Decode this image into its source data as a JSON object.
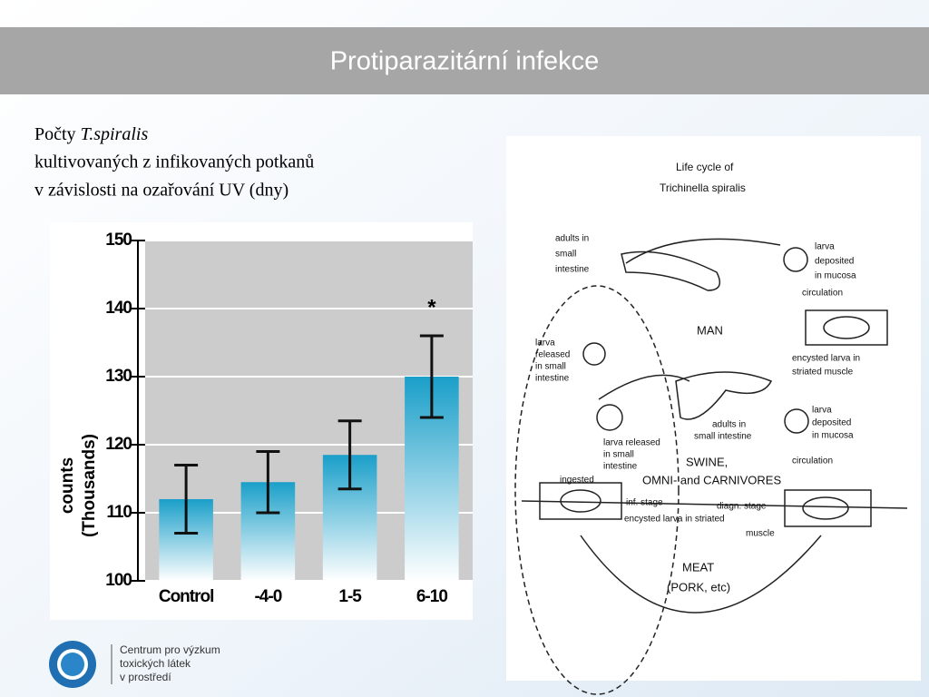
{
  "header": {
    "title": "Protiparazitární infekce"
  },
  "caption": {
    "prefix": "Počty",
    "species": "T.spiralis",
    "line2": "kultivovaných z infikovaných potkanů",
    "line3": "v závislosti na ozařování UV (dny)"
  },
  "chart_data": {
    "type": "bar",
    "categories": [
      "Control",
      "-4-0",
      "1-5",
      "6-10"
    ],
    "values": [
      112,
      114.5,
      118.5,
      130
    ],
    "errors": [
      5,
      4.5,
      5,
      6
    ],
    "color": "#1a9fc9",
    "ylim": [
      100,
      150
    ],
    "yticks": [
      100,
      110,
      120,
      130,
      140,
      150
    ],
    "ylabel": [
      "counts",
      "(Thousands)"
    ],
    "annotation": "*",
    "grid": true
  },
  "diagram": {
    "labels": [
      "Life cycle of",
      "Trichinella spiralis",
      "adults in",
      "small",
      "intestine",
      "larva",
      "deposited",
      "in mucosa",
      "circulation",
      "MAN",
      "encysted larva in",
      "striated muscle",
      "larva",
      "released",
      "in small",
      "intestine",
      "adults in",
      "small intestine",
      "larva released",
      "in small",
      "intestine",
      "larva",
      "deposited",
      "in mucosa",
      "SWINE,",
      "OMNI- and CARNIVORES",
      "circulation",
      "ingested",
      "inf. stage",
      "diagn. stage",
      "encysted larva in striated",
      "muscle",
      "MEAT",
      "(PORK, etc)"
    ]
  },
  "logo": {
    "lines": [
      "Centrum pro výzkum",
      "toxických látek",
      "v prostředí"
    ]
  }
}
